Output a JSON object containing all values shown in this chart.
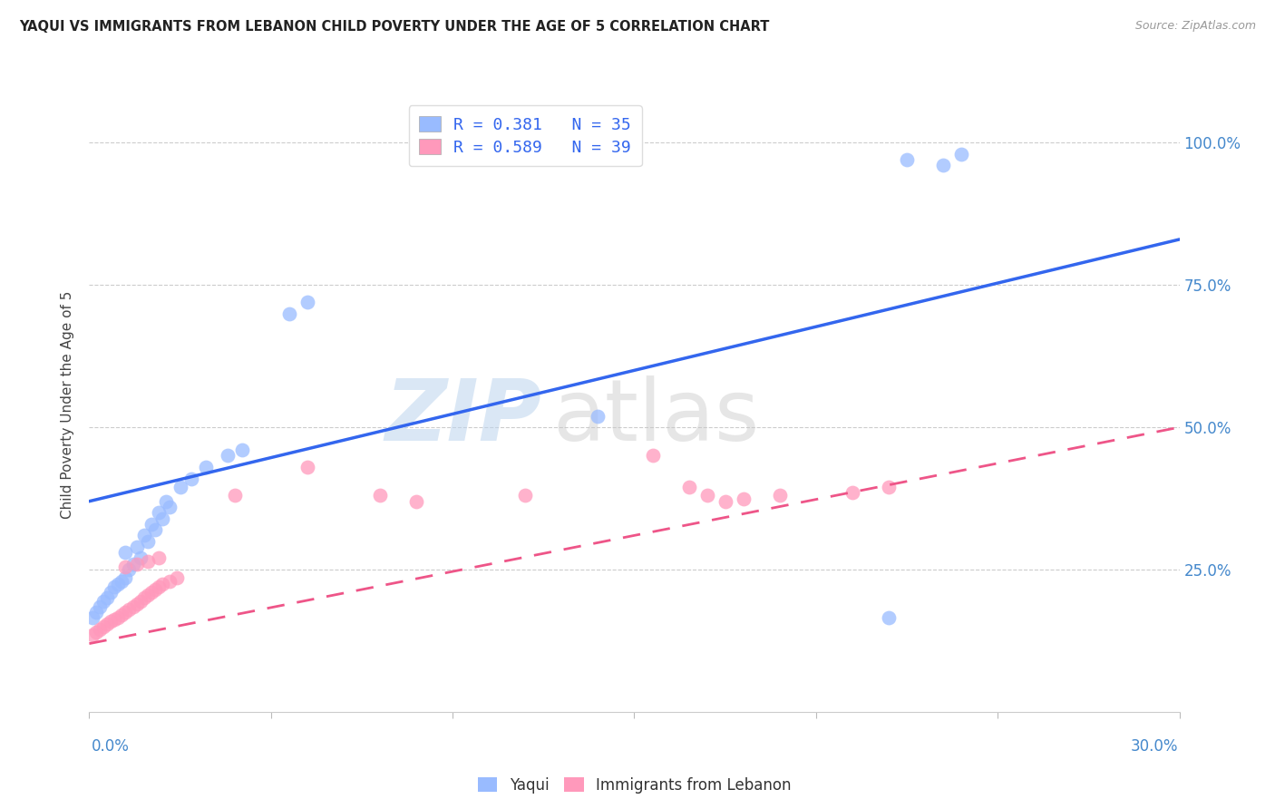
{
  "title": "YAQUI VS IMMIGRANTS FROM LEBANON CHILD POVERTY UNDER THE AGE OF 5 CORRELATION CHART",
  "source": "Source: ZipAtlas.com",
  "ylabel": "Child Poverty Under the Age of 5",
  "ytick_labels": [
    "100.0%",
    "75.0%",
    "50.0%",
    "25.0%"
  ],
  "ytick_values": [
    1.0,
    0.75,
    0.5,
    0.25
  ],
  "xlim": [
    0.0,
    0.3
  ],
  "ylim": [
    0.0,
    1.08
  ],
  "legend_r1": "R = 0.381   N = 35",
  "legend_r2": "R = 0.589   N = 39",
  "color_blue": "#99BBFF",
  "color_pink": "#FF99BB",
  "color_blue_line": "#3366EE",
  "color_pink_line": "#EE5588",
  "blue_line_x0": 0.0,
  "blue_line_y0": 0.37,
  "blue_line_x1": 0.3,
  "blue_line_y1": 0.83,
  "pink_line_x0": 0.0,
  "pink_line_y0": 0.12,
  "pink_line_x1": 0.3,
  "pink_line_y1": 0.5,
  "yaqui_x": [
    0.001,
    0.002,
    0.003,
    0.004,
    0.005,
    0.006,
    0.007,
    0.008,
    0.009,
    0.01,
    0.011,
    0.012,
    0.014,
    0.016,
    0.018,
    0.02,
    0.022,
    0.025,
    0.028,
    0.032,
    0.038,
    0.042,
    0.01,
    0.013,
    0.015,
    0.017,
    0.019,
    0.021,
    0.055,
    0.06,
    0.14,
    0.22,
    0.225,
    0.235,
    0.24
  ],
  "yaqui_y": [
    0.165,
    0.175,
    0.185,
    0.195,
    0.2,
    0.21,
    0.22,
    0.225,
    0.23,
    0.235,
    0.25,
    0.26,
    0.27,
    0.3,
    0.32,
    0.34,
    0.36,
    0.395,
    0.41,
    0.43,
    0.45,
    0.46,
    0.28,
    0.29,
    0.31,
    0.33,
    0.35,
    0.37,
    0.7,
    0.72,
    0.52,
    0.165,
    0.97,
    0.96,
    0.98
  ],
  "lebanon_x": [
    0.001,
    0.002,
    0.003,
    0.004,
    0.005,
    0.006,
    0.007,
    0.008,
    0.009,
    0.01,
    0.011,
    0.012,
    0.013,
    0.014,
    0.015,
    0.016,
    0.017,
    0.018,
    0.019,
    0.02,
    0.022,
    0.024,
    0.01,
    0.013,
    0.016,
    0.019,
    0.04,
    0.06,
    0.08,
    0.09,
    0.12,
    0.155,
    0.165,
    0.17,
    0.175,
    0.18,
    0.19,
    0.21,
    0.22
  ],
  "lebanon_y": [
    0.135,
    0.14,
    0.145,
    0.15,
    0.155,
    0.16,
    0.162,
    0.165,
    0.17,
    0.175,
    0.18,
    0.185,
    0.19,
    0.195,
    0.2,
    0.205,
    0.21,
    0.215,
    0.22,
    0.225,
    0.23,
    0.235,
    0.255,
    0.26,
    0.265,
    0.27,
    0.38,
    0.43,
    0.38,
    0.37,
    0.38,
    0.45,
    0.395,
    0.38,
    0.37,
    0.375,
    0.38,
    0.385,
    0.395
  ]
}
